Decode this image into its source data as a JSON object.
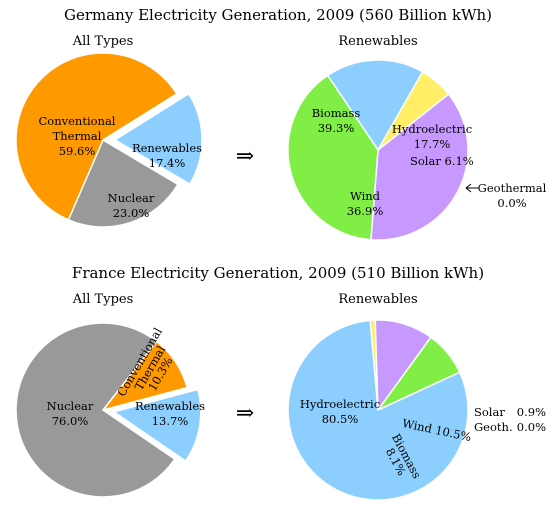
{
  "charts_colors": {
    "conventional": "#ff9900",
    "nuclear": "#999999",
    "renewables": "#8ccfff",
    "biomass": "#80ee44",
    "hydroelectric": "#8ccfff",
    "solar": "#ffee66",
    "wind": "#c799ff",
    "geothermal": "#ff66cc"
  },
  "arrow_symbol": "⇒",
  "chart_data": [
    {
      "type": "pie",
      "title": "Germany Electricity Generation, 2009 (560 Billion kWh)",
      "subtitle": "All Types",
      "slices": [
        {
          "label": "Conventional Thermal",
          "label_lines": [
            "Conventional",
            "Thermal"
          ],
          "pct_text": "59.6%",
          "value": 59.6,
          "color_key": "conventional"
        },
        {
          "label": "Nuclear",
          "label_lines": [
            "Nuclear"
          ],
          "pct_text": "23.0%",
          "value": 23.0,
          "color_key": "nuclear"
        },
        {
          "label": "Renewables",
          "label_lines": [
            "Renewables"
          ],
          "pct_text": "17.4%",
          "value": 17.4,
          "color_key": "renewables",
          "exploded": true
        }
      ]
    },
    {
      "type": "pie",
      "subtitle": "Renewables",
      "slices": [
        {
          "label": "Biomass",
          "pct_text": "39.3%",
          "value": 39.3,
          "color_key": "biomass"
        },
        {
          "label": "Hydroelectric",
          "pct_text": "17.7%",
          "value": 17.7,
          "color_key": "hydroelectric"
        },
        {
          "label": "Solar",
          "pct_text": "6.1%",
          "value": 6.1,
          "color_key": "solar"
        },
        {
          "label": "Geothermal",
          "pct_text": "0.0%",
          "value": 0.0,
          "color_key": "geothermal"
        },
        {
          "label": "Wind",
          "pct_text": "36.9%",
          "value": 36.9,
          "color_key": "wind"
        }
      ]
    },
    {
      "type": "pie",
      "title": "France Electricity Generation, 2009 (510 Billion kWh)",
      "subtitle": "All Types",
      "slices": [
        {
          "label": "Nuclear",
          "pct_text": "76.0%",
          "value": 76.0,
          "color_key": "nuclear"
        },
        {
          "label": "Conventional Thermal",
          "label_lines": [
            "Conventional",
            "Thermal"
          ],
          "pct_text": "10.3%",
          "value": 10.3,
          "color_key": "conventional"
        },
        {
          "label": "Renewables",
          "pct_text": "13.7%",
          "value": 13.7,
          "color_key": "renewables",
          "exploded": true
        }
      ]
    },
    {
      "type": "pie",
      "subtitle": "Renewables",
      "slices": [
        {
          "label": "Hydroelectric",
          "pct_text": "80.5%",
          "value": 80.5,
          "color_key": "hydroelectric"
        },
        {
          "label": "Solar",
          "pct_text": "0.9%",
          "value": 0.9,
          "color_key": "solar"
        },
        {
          "label": "Geoth.",
          "pct_text": "0.0%",
          "value": 0.0,
          "color_key": "geothermal"
        },
        {
          "label": "Wind",
          "pct_text": "10.5%",
          "value": 10.5,
          "color_key": "wind"
        },
        {
          "label": "Biomass",
          "pct_text": "8.1%",
          "value": 8.1,
          "color_key": "biomass"
        }
      ]
    }
  ]
}
